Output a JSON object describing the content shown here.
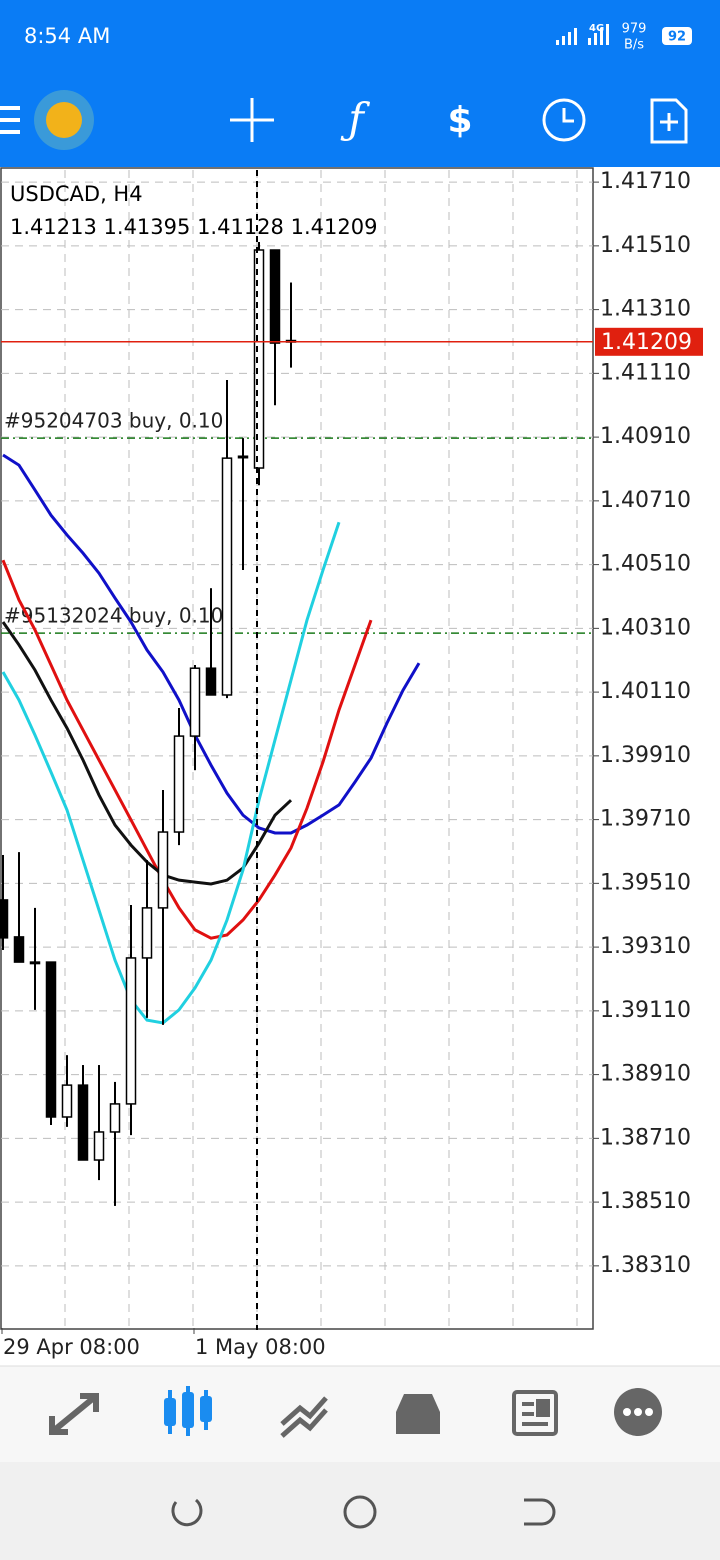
{
  "status_bar": {
    "time": "8:54 AM",
    "network": "4G",
    "speed": "979",
    "speed_unit": "B/s",
    "battery": "92"
  },
  "chart_data": {
    "type": "candlestick",
    "symbol": "USDCAD, H4",
    "categories": [
      "29 Apr 08:00",
      null,
      null,
      null,
      null,
      null,
      null,
      null,
      null,
      null,
      null,
      null,
      "1 May 08:00",
      null,
      null,
      null,
      null,
      null,
      null,
      null,
      null,
      null,
      null,
      null,
      null,
      null,
      null
    ],
    "open": [
      1.39458,
      1.39342,
      1.39263,
      1.39263,
      1.38777,
      1.38877,
      1.38642,
      1.3873,
      1.38818,
      1.39276,
      1.39433,
      1.39671,
      1.39972,
      1.40185,
      1.40101,
      1.4085,
      1.40813,
      1.41497,
      1.41213,
      null,
      null,
      null,
      null,
      null,
      null,
      null,
      null
    ],
    "high": [
      1.39599,
      1.39608,
      1.39433,
      1.39263,
      1.38971,
      1.3894,
      1.3894,
      1.38887,
      1.39442,
      1.39583,
      1.39803,
      1.4006,
      1.40195,
      1.40436,
      1.41089,
      1.40907,
      1.41522,
      1.41497,
      1.41395,
      null,
      null,
      null,
      null,
      null,
      null,
      null,
      null
    ],
    "low": [
      1.39301,
      1.39263,
      1.39113,
      1.38752,
      1.38746,
      1.38642,
      1.38579,
      1.38498,
      1.3872,
      1.39088,
      1.39066,
      1.3963,
      1.39865,
      1.40101,
      1.40091,
      1.40493,
      1.40759,
      1.4101,
      1.41128,
      null,
      null,
      null,
      null,
      null,
      null,
      null,
      null
    ],
    "close": [
      1.39339,
      1.39263,
      1.39263,
      1.38777,
      1.38877,
      1.38642,
      1.3873,
      1.38818,
      1.39276,
      1.39433,
      1.39671,
      1.39972,
      1.40185,
      1.40101,
      1.40844,
      1.4085,
      1.41497,
      1.41205,
      1.41209,
      null,
      null,
      null,
      null,
      null,
      null,
      null,
      null
    ],
    "up_color": "#ffffff",
    "down_color": "#000000",
    "series": [
      {
        "color": "#1010c8",
        "values": [
          1.40854,
          1.40822,
          1.40744,
          1.40665,
          1.40603,
          1.40546,
          1.40483,
          1.40405,
          1.4033,
          1.40242,
          1.40173,
          1.40085,
          1.39975,
          1.39881,
          1.39793,
          1.39724,
          1.39684,
          1.39668,
          1.39668,
          1.39693,
          1.39724,
          1.39756,
          1.39828,
          1.39903,
          1.40013,
          1.40116,
          1.40201
        ]
      },
      {
        "color": "#e01010",
        "values": [
          1.40524,
          1.40399,
          1.40305,
          1.40195,
          1.40085,
          1.39991,
          1.39897,
          1.39803,
          1.39709,
          1.39614,
          1.3952,
          1.39433,
          1.39364,
          1.39338,
          1.39348,
          1.39395,
          1.39458,
          1.39536,
          1.39621,
          1.39746,
          1.39891,
          1.40054,
          1.40195,
          1.40336,
          null,
          null,
          null
        ]
      },
      {
        "color": "#111111",
        "values": [
          1.4033,
          1.40258,
          1.40179,
          1.40085,
          1.39997,
          1.39897,
          1.39787,
          1.39693,
          1.3963,
          1.39577,
          1.39536,
          1.3952,
          1.39514,
          1.39508,
          1.3952,
          1.39558,
          1.39636,
          1.39724,
          1.39771,
          null,
          null,
          null,
          null,
          null,
          null,
          null,
          null
        ]
      },
      {
        "color": "#20d0e0",
        "values": [
          1.40173,
          1.40085,
          1.39975,
          1.39859,
          1.3974,
          1.39583,
          1.39426,
          1.39269,
          1.39144,
          1.39081,
          1.39072,
          1.39113,
          1.39182,
          1.39269,
          1.39395,
          1.39552,
          1.39771,
          1.3996,
          1.40148,
          1.40336,
          1.40493,
          1.40643,
          null,
          null,
          null,
          null,
          null
        ]
      }
    ],
    "orders": [
      {
        "label": "#95204703 buy, 0.10",
        "price": 1.40907,
        "color": "#1a7a1a"
      },
      {
        "label": "#95132024 buy, 0.10",
        "price": 1.40295,
        "color": "#1a7a1a"
      }
    ],
    "price_color": "#e0200f",
    "ylim": [
      1.38115,
      1.41748
    ],
    "yticks": [
      {
        "value": 1.4171,
        "label": "1.41710"
      },
      {
        "value": 1.4151,
        "label": "1.41510"
      },
      {
        "value": 1.4131,
        "label": "1.41310"
      },
      {
        "value": 1.4111,
        "label": "1.41110"
      },
      {
        "value": 1.4091,
        "label": "1.40910"
      },
      {
        "value": 1.4071,
        "label": "1.40710"
      },
      {
        "value": 1.4051,
        "label": "1.40510"
      },
      {
        "value": 1.4031,
        "label": "1.40310"
      },
      {
        "value": 1.4011,
        "label": "1.40110"
      },
      {
        "value": 1.3991,
        "label": "1.39910"
      },
      {
        "value": 1.3971,
        "label": "1.39710"
      },
      {
        "value": 1.3951,
        "label": "1.39510"
      },
      {
        "value": 1.3931,
        "label": "1.39310"
      },
      {
        "value": 1.3911,
        "label": "1.39110"
      },
      {
        "value": 1.3891,
        "label": "1.38910"
      },
      {
        "value": 1.3871,
        "label": "1.38710"
      },
      {
        "value": 1.3851,
        "label": "1.38510"
      },
      {
        "value": 1.3831,
        "label": "1.38310"
      }
    ],
    "grid": true
  }
}
